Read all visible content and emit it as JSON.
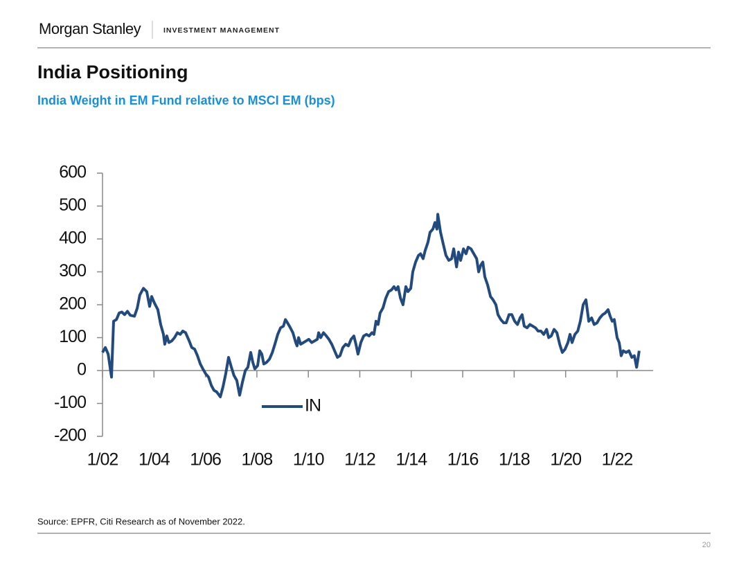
{
  "header": {
    "logo": "Morgan Stanley",
    "division": "INVESTMENT MANAGEMENT"
  },
  "title": "India Positioning",
  "footer": {
    "source": "Source: EPFR, Citi Research as of November 2022.",
    "page": "20"
  },
  "chart_data": {
    "type": "line",
    "title": "India Weight in EM Fund relative to MSCI EM (bps)",
    "xlim": [
      2002,
      2023.4
    ],
    "xticks": [
      {
        "value": 2002,
        "label": "1/02"
      },
      {
        "value": 2004,
        "label": "1/04"
      },
      {
        "value": 2006,
        "label": "1/06"
      },
      {
        "value": 2008,
        "label": "1/08"
      },
      {
        "value": 2010,
        "label": "1/10"
      },
      {
        "value": 2012,
        "label": "1/12"
      },
      {
        "value": 2014,
        "label": "1/14"
      },
      {
        "value": 2016,
        "label": "1/16"
      },
      {
        "value": 2018,
        "label": "1/18"
      },
      {
        "value": 2020,
        "label": "1/20"
      },
      {
        "value": 2022,
        "label": "1/22"
      }
    ],
    "ylim": [
      -200,
      600
    ],
    "yticks": [
      -200,
      -100,
      0,
      100,
      200,
      300,
      400,
      500,
      600
    ],
    "legend": "lower center",
    "x": [
      2002.0,
      2002.11,
      2002.22,
      2002.35,
      2002.43,
      2002.54,
      2002.65,
      2002.75,
      2002.86,
      2002.97,
      2003.08,
      2003.24,
      2003.35,
      2003.45,
      2003.59,
      2003.72,
      2003.83,
      2003.91,
      2004.02,
      2004.15,
      2004.26,
      2004.37,
      2004.42,
      2004.5,
      2004.58,
      2004.69,
      2004.8,
      2004.91,
      2005.02,
      2005.12,
      2005.23,
      2005.37,
      2005.47,
      2005.58,
      2005.69,
      2005.8,
      2005.9,
      2006.01,
      2006.12,
      2006.23,
      2006.33,
      2006.44,
      2006.58,
      2006.68,
      2006.79,
      2006.9,
      2007.01,
      2007.11,
      2007.22,
      2007.33,
      2007.44,
      2007.55,
      2007.65,
      2007.76,
      2007.84,
      2007.92,
      2008.03,
      2008.11,
      2008.19,
      2008.27,
      2008.38,
      2008.49,
      2008.6,
      2008.7,
      2008.81,
      2008.92,
      2009.03,
      2009.11,
      2009.19,
      2009.3,
      2009.4,
      2009.51,
      2009.56,
      2009.62,
      2009.7,
      2009.81,
      2009.91,
      2010.02,
      2010.13,
      2010.24,
      2010.35,
      2010.4,
      2010.48,
      2010.59,
      2010.7,
      2010.8,
      2010.91,
      2011.02,
      2011.13,
      2011.23,
      2011.34,
      2011.45,
      2011.56,
      2011.66,
      2011.77,
      2011.85,
      2011.93,
      2012.04,
      2012.15,
      2012.26,
      2012.36,
      2012.47,
      2012.55,
      2012.63,
      2012.71,
      2012.79,
      2012.9,
      2013.01,
      2013.12,
      2013.23,
      2013.33,
      2013.41,
      2013.49,
      2013.58,
      2013.68,
      2013.79,
      2013.87,
      2013.98,
      2014.06,
      2014.17,
      2014.28,
      2014.36,
      2014.46,
      2014.54,
      2014.65,
      2014.73,
      2014.84,
      2014.92,
      2015.0,
      2015.03,
      2015.14,
      2015.24,
      2015.35,
      2015.46,
      2015.57,
      2015.65,
      2015.76,
      2015.84,
      2015.92,
      2016.03,
      2016.13,
      2016.21,
      2016.32,
      2016.43,
      2016.54,
      2016.62,
      2016.7,
      2016.78,
      2016.86,
      2016.97,
      2017.08,
      2017.18,
      2017.29,
      2017.37,
      2017.48,
      2017.59,
      2017.69,
      2017.8,
      2017.91,
      2018.02,
      2018.13,
      2018.23,
      2018.31,
      2018.39,
      2018.5,
      2018.61,
      2018.72,
      2018.83,
      2018.93,
      2019.04,
      2019.15,
      2019.26,
      2019.34,
      2019.44,
      2019.55,
      2019.66,
      2019.77,
      2019.87,
      2019.98,
      2020.09,
      2020.17,
      2020.25,
      2020.36,
      2020.47,
      2020.57,
      2020.68,
      2020.79,
      2020.9,
      2021.01,
      2021.11,
      2021.22,
      2021.33,
      2021.44,
      2021.54,
      2021.65,
      2021.73,
      2021.81,
      2021.89,
      2022.0,
      2022.08,
      2022.16,
      2022.24,
      2022.35,
      2022.46,
      2022.57,
      2022.67,
      2022.76,
      2022.86
    ],
    "series": [
      {
        "name": "IN",
        "color": "#234a7c",
        "values": [
          55,
          70,
          50,
          -20,
          150,
          155,
          175,
          178,
          170,
          180,
          168,
          165,
          190,
          230,
          250,
          240,
          195,
          225,
          205,
          185,
          140,
          110,
          80,
          105,
          85,
          90,
          100,
          115,
          110,
          120,
          115,
          90,
          70,
          65,
          45,
          20,
          5,
          -10,
          -20,
          -45,
          -60,
          -65,
          -80,
          -50,
          -10,
          40,
          10,
          -15,
          -30,
          -75,
          -35,
          0,
          10,
          55,
          25,
          5,
          15,
          60,
          50,
          20,
          25,
          35,
          55,
          80,
          110,
          130,
          135,
          155,
          145,
          130,
          115,
          85,
          75,
          100,
          80,
          85,
          90,
          95,
          85,
          90,
          95,
          115,
          100,
          115,
          105,
          95,
          80,
          60,
          40,
          45,
          70,
          80,
          75,
          95,
          105,
          80,
          50,
          85,
          105,
          110,
          105,
          115,
          110,
          150,
          140,
          175,
          190,
          220,
          240,
          245,
          255,
          245,
          255,
          220,
          200,
          255,
          240,
          250,
          300,
          330,
          350,
          355,
          340,
          365,
          390,
          420,
          430,
          450,
          430,
          475,
          420,
          385,
          350,
          335,
          340,
          370,
          315,
          360,
          335,
          370,
          355,
          375,
          370,
          355,
          340,
          300,
          320,
          330,
          285,
          260,
          225,
          215,
          200,
          170,
          155,
          145,
          145,
          170,
          170,
          150,
          140,
          160,
          170,
          135,
          130,
          140,
          135,
          130,
          120,
          120,
          110,
          125,
          100,
          105,
          125,
          115,
          80,
          55,
          65,
          85,
          110,
          85,
          110,
          120,
          150,
          200,
          215,
          150,
          160,
          140,
          145,
          160,
          170,
          175,
          185,
          165,
          150,
          155,
          100,
          85,
          45,
          60,
          55,
          60,
          40,
          45,
          10,
          60
        ]
      }
    ]
  }
}
